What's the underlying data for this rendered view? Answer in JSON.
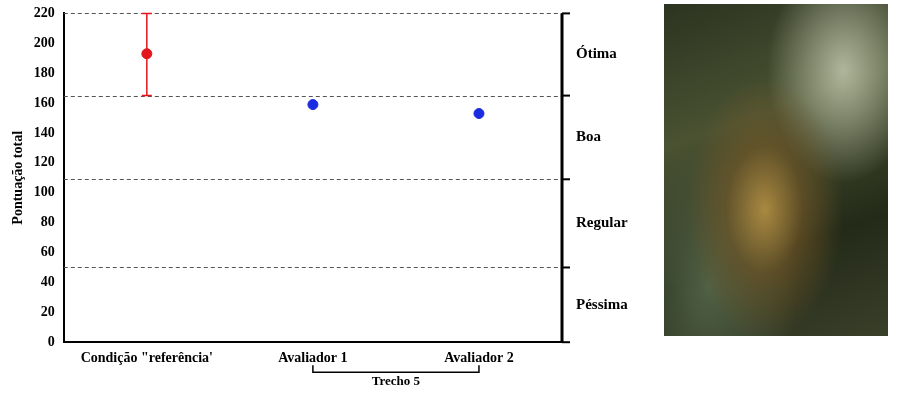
{
  "chart_data": {
    "type": "scatter",
    "categories": [
      "Condição \"referência'",
      "Avaliador 1",
      "Avaliador 2"
    ],
    "values": [
      193,
      159,
      153
    ],
    "colors": [
      "#e3141b",
      "#1a2be0",
      "#1a2be0"
    ],
    "error_low": [
      165,
      null,
      null
    ],
    "error_high": [
      220,
      null,
      null
    ],
    "y_label": "Pontuação total",
    "ylim": [
      0,
      220
    ],
    "yticks": [
      0,
      20,
      40,
      60,
      80,
      100,
      120,
      140,
      160,
      180,
      200,
      220
    ],
    "bands": [
      {
        "label": "Ótima",
        "from": 165,
        "to": 220
      },
      {
        "label": "Boa",
        "from": 109,
        "to": 165
      },
      {
        "label": "Regular",
        "from": 50,
        "to": 109
      },
      {
        "label": "Péssima",
        "from": 0,
        "to": 50
      }
    ],
    "groups": [
      {
        "label": "Trecho 5",
        "categories": [
          "Avaliador 1",
          "Avaliador 2"
        ]
      }
    ],
    "marker": "circle",
    "grid": false
  }
}
